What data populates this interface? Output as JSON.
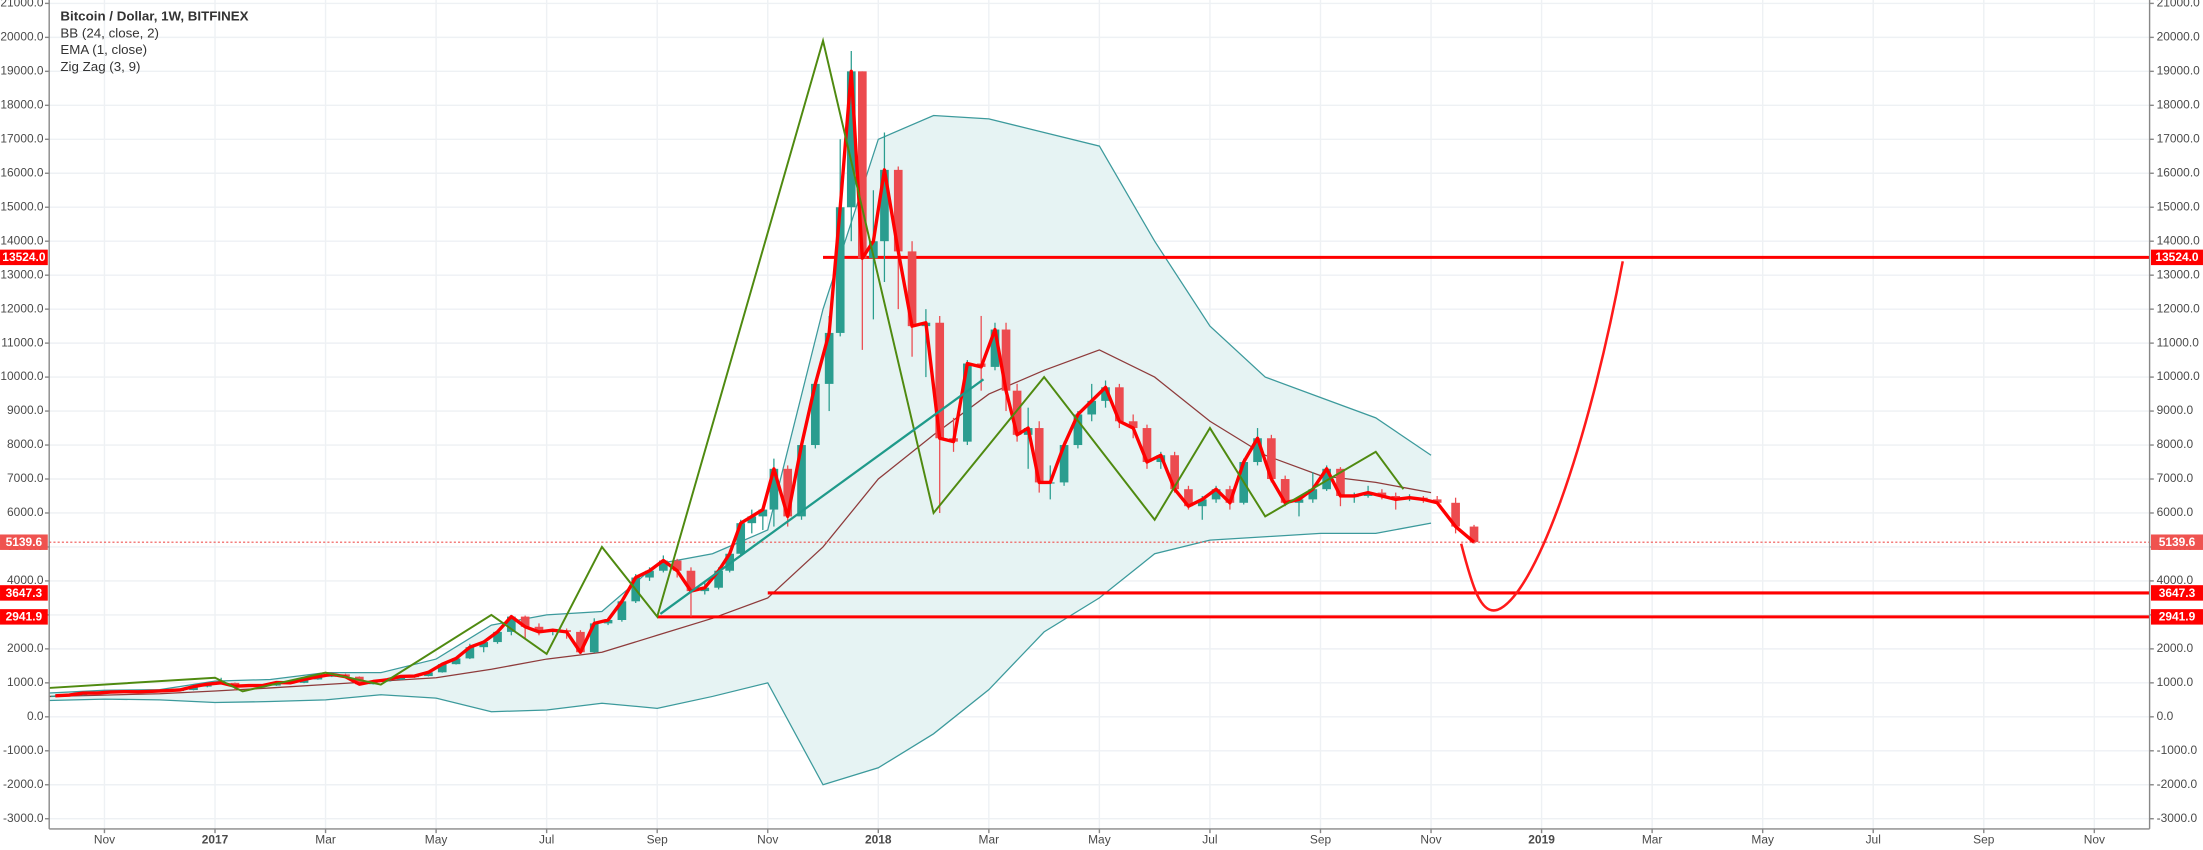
{
  "chart_data": {
    "type": "candlestick",
    "title": "Bitcoin / Dollar, 1W, BITFINEX",
    "xlim": [
      "2016-10",
      "2019-12"
    ],
    "ylim": [
      -3300,
      21100
    ],
    "grid": true,
    "xticks": [
      {
        "value": "2016-11",
        "label": "Nov"
      },
      {
        "value": "2017-01",
        "label": "2017"
      },
      {
        "value": "2017-03",
        "label": "Mar"
      },
      {
        "value": "2017-05",
        "label": "May"
      },
      {
        "value": "2017-07",
        "label": "Jul"
      },
      {
        "value": "2017-09",
        "label": "Sep"
      },
      {
        "value": "2017-11",
        "label": "Nov"
      },
      {
        "value": "2018-01",
        "label": "2018"
      },
      {
        "value": "2018-03",
        "label": "Mar"
      },
      {
        "value": "2018-05",
        "label": "May"
      },
      {
        "value": "2018-07",
        "label": "Jul"
      },
      {
        "value": "2018-09",
        "label": "Sep"
      },
      {
        "value": "2018-11",
        "label": "Nov"
      },
      {
        "value": "2019-01",
        "label": "2019"
      },
      {
        "value": "2019-03",
        "label": "Mar"
      },
      {
        "value": "2019-05",
        "label": "May"
      },
      {
        "value": "2019-07",
        "label": "Jul"
      },
      {
        "value": "2019-09",
        "label": "Sep"
      },
      {
        "value": "2019-11",
        "label": "Nov"
      }
    ],
    "yticks": [
      {
        "value": -3000,
        "label": "-3000.0"
      },
      {
        "value": -2000,
        "label": "-2000.0"
      },
      {
        "value": -1000,
        "label": "-1000.0"
      },
      {
        "value": 0,
        "label": "0.0"
      },
      {
        "value": 1000,
        "label": "1000.0"
      },
      {
        "value": 2000,
        "label": "2000.0"
      },
      {
        "value": 3000,
        "label": "3000.0"
      },
      {
        "value": 4000,
        "label": "4000.0"
      },
      {
        "value": 5000,
        "label": "5000.0"
      },
      {
        "value": 6000,
        "label": "6000.0"
      },
      {
        "value": 7000,
        "label": "7000.0"
      },
      {
        "value": 8000,
        "label": "8000.0"
      },
      {
        "value": 9000,
        "label": "9000.0"
      },
      {
        "value": 10000,
        "label": "10000.0"
      },
      {
        "value": 11000,
        "label": "11000.0"
      },
      {
        "value": 12000,
        "label": "12000.0"
      },
      {
        "value": 13000,
        "label": "13000.0"
      },
      {
        "value": 14000,
        "label": "14000.0"
      },
      {
        "value": 15000,
        "label": "15000.0"
      },
      {
        "value": 16000,
        "label": "16000.0"
      },
      {
        "value": 17000,
        "label": "17000.0"
      },
      {
        "value": 18000,
        "label": "18000.0"
      },
      {
        "value": 19000,
        "label": "19000.0"
      },
      {
        "value": 20000,
        "label": "20000.0"
      },
      {
        "value": 21000,
        "label": "21000.0"
      }
    ],
    "candles": {
      "up_color": "#2a9d8f",
      "down_color": "#ec4b4f",
      "x": [
        "2016-10",
        "2016-10",
        "2016-10",
        "2016-10",
        "2016-11",
        "2016-11",
        "2016-11",
        "2016-11",
        "2016-12",
        "2016-12",
        "2016-12",
        "2016-12",
        "2017-01",
        "2017-01",
        "2017-01",
        "2017-01",
        "2017-02",
        "2017-02",
        "2017-02",
        "2017-02",
        "2017-03",
        "2017-03",
        "2017-03",
        "2017-03",
        "2017-04",
        "2017-04",
        "2017-04",
        "2017-04",
        "2017-05",
        "2017-05",
        "2017-05",
        "2017-05",
        "2017-06",
        "2017-06",
        "2017-06",
        "2017-06",
        "2017-07",
        "2017-07",
        "2017-07",
        "2017-07",
        "2017-08",
        "2017-08",
        "2017-08",
        "2017-08",
        "2017-09",
        "2017-09",
        "2017-09",
        "2017-09",
        "2017-10",
        "2017-10",
        "2017-10",
        "2017-10",
        "2017-10",
        "2017-11",
        "2017-11",
        "2017-11",
        "2017-11",
        "2017-12",
        "2017-12",
        "2017-12",
        "2017-12",
        "2017-12",
        "2018-01",
        "2018-01",
        "2018-01",
        "2018-01",
        "2018-02",
        "2018-02",
        "2018-02",
        "2018-02",
        "2018-03",
        "2018-03",
        "2018-03",
        "2018-03",
        "2018-03",
        "2018-04",
        "2018-04",
        "2018-04",
        "2018-04",
        "2018-05",
        "2018-05",
        "2018-05",
        "2018-05",
        "2018-06",
        "2018-06",
        "2018-06",
        "2018-06",
        "2018-07",
        "2018-07",
        "2018-07",
        "2018-07",
        "2018-08",
        "2018-08",
        "2018-08",
        "2018-08",
        "2018-09",
        "2018-09",
        "2018-09",
        "2018-09",
        "2018-10",
        "2018-10",
        "2018-10",
        "2018-10",
        "2018-11",
        "2018-11",
        "2018-11"
      ],
      "ohlc": [
        [
          610,
          640,
          600,
          620
        ],
        [
          620,
          660,
          610,
          640
        ],
        [
          640,
          720,
          630,
          700
        ],
        [
          700,
          740,
          680,
          700
        ],
        [
          700,
          750,
          690,
          730
        ],
        [
          730,
          760,
          710,
          740
        ],
        [
          740,
          760,
          720,
          735
        ],
        [
          735,
          770,
          730,
          750
        ],
        [
          750,
          780,
          740,
          770
        ],
        [
          770,
          800,
          760,
          790
        ],
        [
          790,
          900,
          780,
          890
        ],
        [
          890,
          980,
          870,
          960
        ],
        [
          960,
          1150,
          950,
          1000
        ],
        [
          1000,
          1010,
          780,
          900
        ],
        [
          900,
          930,
          880,
          920
        ],
        [
          920,
          940,
          900,
          920
        ],
        [
          920,
          1020,
          910,
          1010
        ],
        [
          1010,
          1030,
          980,
          1000
        ],
        [
          1000,
          1110,
          990,
          1100
        ],
        [
          1100,
          1200,
          1090,
          1180
        ],
        [
          1180,
          1280,
          1170,
          1250
        ],
        [
          1250,
          1270,
          1150,
          1180
        ],
        [
          1180,
          1190,
          930,
          960
        ],
        [
          960,
          1060,
          950,
          1040
        ],
        [
          1040,
          1100,
          1030,
          1090
        ],
        [
          1090,
          1200,
          1080,
          1190
        ],
        [
          1190,
          1220,
          1150,
          1200
        ],
        [
          1200,
          1320,
          1190,
          1310
        ],
        [
          1310,
          1560,
          1300,
          1550
        ],
        [
          1550,
          1740,
          1540,
          1720
        ],
        [
          1720,
          2150,
          1700,
          2050
        ],
        [
          2050,
          2250,
          1900,
          2200
        ],
        [
          2200,
          2550,
          2150,
          2500
        ],
        [
          2500,
          3000,
          2400,
          2950
        ],
        [
          2950,
          2980,
          2300,
          2650
        ],
        [
          2650,
          2750,
          2400,
          2500
        ],
        [
          2500,
          2600,
          2400,
          2550
        ],
        [
          2550,
          2600,
          2300,
          2500
        ],
        [
          2500,
          2550,
          1850,
          1900
        ],
        [
          1900,
          2900,
          1880,
          2750
        ],
        [
          2750,
          2900,
          2700,
          2850
        ],
        [
          2850,
          3450,
          2800,
          3400
        ],
        [
          3400,
          4200,
          3350,
          4100
        ],
        [
          4100,
          4400,
          4000,
          4300
        ],
        [
          4300,
          4750,
          4250,
          4600
        ],
        [
          4600,
          4650,
          4100,
          4300
        ],
        [
          4300,
          4400,
          2950,
          3700
        ],
        [
          3700,
          4000,
          3600,
          3800
        ],
        [
          3800,
          4400,
          3750,
          4300
        ],
        [
          4300,
          4900,
          4250,
          4800
        ],
        [
          4800,
          5800,
          4750,
          5700
        ],
        [
          5700,
          6100,
          5400,
          5900
        ],
        [
          5900,
          6200,
          5500,
          6100
        ],
        [
          6100,
          7600,
          5600,
          7300
        ],
        [
          7300,
          7400,
          5600,
          5900
        ],
        [
          5900,
          8100,
          5800,
          8000
        ],
        [
          8000,
          9900,
          7900,
          9800
        ],
        [
          9800,
          11800,
          9000,
          11300
        ],
        [
          11300,
          17000,
          11200,
          15000
        ],
        [
          15000,
          19600,
          14000,
          19000
        ],
        [
          19000,
          19000,
          10800,
          13500
        ],
        [
          13500,
          15500,
          11700,
          14000
        ],
        [
          14000,
          17200,
          12800,
          16100
        ],
        [
          16100,
          16200,
          12000,
          13700
        ],
        [
          13700,
          14000,
          10600,
          11500
        ],
        [
          11500,
          12000,
          10000,
          11600
        ],
        [
          11600,
          11800,
          6000,
          8200
        ],
        [
          8200,
          8800,
          7800,
          8100
        ],
        [
          8100,
          10500,
          8000,
          10400
        ],
        [
          10400,
          11800,
          9600,
          10300
        ],
        [
          10300,
          11600,
          10200,
          11400
        ],
        [
          11400,
          11600,
          9000,
          9600
        ],
        [
          9600,
          9800,
          8100,
          8300
        ],
        [
          8300,
          9100,
          7300,
          8500
        ],
        [
          8500,
          8700,
          6600,
          6900
        ],
        [
          6900,
          7400,
          6400,
          6900
        ],
        [
          6900,
          8100,
          6800,
          8000
        ],
        [
          8000,
          9000,
          7900,
          8900
        ],
        [
          8900,
          9800,
          8700,
          9300
        ],
        [
          9300,
          9900,
          9100,
          9700
        ],
        [
          9700,
          9800,
          8500,
          8700
        ],
        [
          8700,
          8900,
          8200,
          8500
        ],
        [
          8500,
          8600,
          7300,
          7500
        ],
        [
          7500,
          7800,
          7300,
          7700
        ],
        [
          7700,
          7800,
          6600,
          6700
        ],
        [
          6700,
          6800,
          6100,
          6200
        ],
        [
          6200,
          6500,
          5800,
          6400
        ],
        [
          6400,
          6800,
          6300,
          6700
        ],
        [
          6700,
          6800,
          6100,
          6300
        ],
        [
          6300,
          7600,
          6250,
          7500
        ],
        [
          7500,
          8500,
          7400,
          8200
        ],
        [
          8200,
          8300,
          6900,
          7000
        ],
        [
          7000,
          7100,
          6200,
          6300
        ],
        [
          6300,
          6500,
          5900,
          6400
        ],
        [
          6400,
          7200,
          6300,
          6700
        ],
        [
          6700,
          7400,
          6650,
          7300
        ],
        [
          7300,
          7350,
          6200,
          6500
        ],
        [
          6500,
          6600,
          6300,
          6500
        ],
        [
          6500,
          6800,
          6450,
          6600
        ],
        [
          6600,
          6700,
          6400,
          6500
        ],
        [
          6500,
          6600,
          6100,
          6400
        ],
        [
          6400,
          6550,
          6350,
          6450
        ],
        [
          6450,
          6500,
          6300,
          6400
        ],
        [
          6400,
          6500,
          6250,
          6300
        ],
        [
          6300,
          6450,
          5400,
          5600
        ],
        [
          5600,
          5650,
          5100,
          5140
        ]
      ]
    },
    "bb": {
      "name": "BB (24, close, 2)",
      "color": "#3c9a9c",
      "basis_color": "#8e3b3b",
      "fill": "#e6f3f3",
      "x": [
        "2016-10",
        "2016-11",
        "2016-12",
        "2017-01",
        "2017-02",
        "2017-03",
        "2017-04",
        "2017-05",
        "2017-06",
        "2017-07",
        "2017-08",
        "2017-09",
        "2017-10",
        "2017-11",
        "2017-12",
        "2018-01",
        "2018-02",
        "2018-03",
        "2018-04",
        "2018-05",
        "2018-06",
        "2018-07",
        "2018-08",
        "2018-09",
        "2018-10",
        "2018-11"
      ],
      "upper": [
        700,
        780,
        800,
        1050,
        1100,
        1300,
        1300,
        1700,
        2700,
        3000,
        3100,
        4500,
        4800,
        5500,
        12000,
        17000,
        17700,
        17600,
        17200,
        16800,
        14000,
        11500,
        10000,
        9400,
        8800,
        7700
      ],
      "basis": [
        600,
        640,
        680,
        760,
        850,
        950,
        1050,
        1150,
        1400,
        1700,
        1900,
        2400,
        2900,
        3500,
        5000,
        7000,
        8300,
        9500,
        10200,
        10800,
        10000,
        8700,
        7700,
        7100,
        6900,
        6600
      ],
      "lower": [
        480,
        520,
        500,
        420,
        450,
        500,
        650,
        550,
        150,
        200,
        400,
        250,
        600,
        1000,
        -2000,
        -1500,
        -500,
        800,
        2500,
        3500,
        4800,
        5200,
        5300,
        5400,
        5400,
        5700
      ]
    },
    "ema": {
      "name": "EMA (1, close)",
      "color": "#ff0000"
    },
    "zigzag": {
      "name": "Zig Zag (3, 9)",
      "color": "#4f8a10",
      "x": [
        "2016-10",
        "2017-01",
        "2017-01",
        "2017-03",
        "2017-04",
        "2017-06",
        "2017-07",
        "2017-08",
        "2017-09",
        "2017-12",
        "2018-02",
        "2018-04",
        "2018-06",
        "2018-07",
        "2018-08",
        "2018-10",
        "2018-10"
      ],
      "values": [
        850,
        1150,
        750,
        1300,
        950,
        3000,
        1850,
        5000,
        2950,
        19900,
        6000,
        10000,
        5800,
        8500,
        5900,
        7800,
        6700
      ]
    },
    "level_color": "#ff0000",
    "levels": [
      {
        "value": 13524,
        "label": "13524.0",
        "start": "2017-12"
      },
      {
        "value": 3647.3,
        "start": "2017-11"
      },
      {
        "value": 2941.9,
        "start": "2017-09"
      }
    ],
    "last_price": {
      "value": 5139.6,
      "color": "#ef5350"
    }
  }
}
